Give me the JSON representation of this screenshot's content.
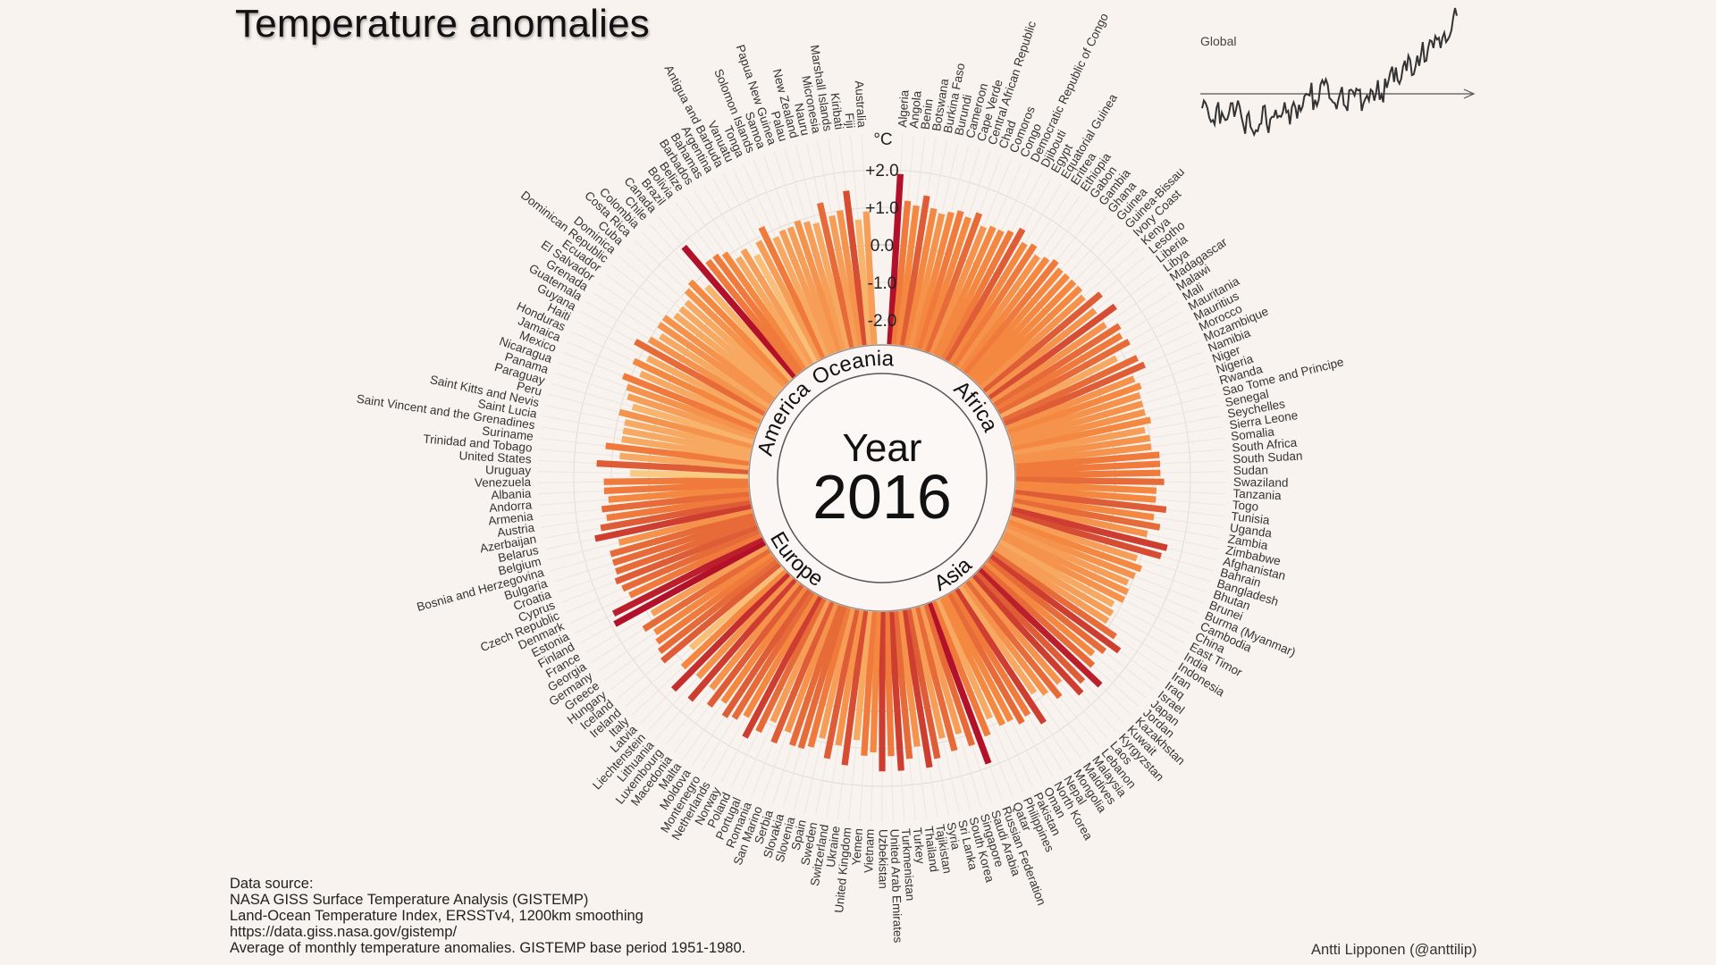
{
  "title": "Temperature anomalies",
  "inset": {
    "label": "Global",
    "series": [
      -0.17,
      -0.08,
      -0.11,
      -0.17,
      -0.28,
      -0.33,
      -0.31,
      -0.36,
      -0.17,
      -0.1,
      -0.35,
      -0.22,
      -0.27,
      -0.31,
      -0.3,
      -0.23,
      -0.11,
      -0.11,
      -0.27,
      -0.18,
      -0.08,
      -0.15,
      -0.28,
      -0.37,
      -0.47,
      -0.26,
      -0.22,
      -0.39,
      -0.43,
      -0.48,
      -0.43,
      -0.44,
      -0.36,
      -0.35,
      -0.15,
      -0.14,
      -0.36,
      -0.46,
      -0.3,
      -0.27,
      -0.27,
      -0.19,
      -0.28,
      -0.26,
      -0.27,
      -0.22,
      -0.1,
      -0.22,
      -0.2,
      -0.36,
      -0.16,
      -0.1,
      -0.16,
      -0.29,
      -0.13,
      -0.2,
      -0.15,
      -0.03,
      0.0,
      -0.01,
      -0.02,
      0.13,
      -0.19,
      -0.07,
      -0.14,
      -0.07,
      0.11,
      0.16,
      0.11,
      0.17,
      0.11,
      -0.05,
      -0.07,
      -0.1,
      -0.11,
      -0.18,
      -0.07,
      0.01,
      0.08,
      -0.13,
      -0.15,
      -0.2,
      0.04,
      0.05,
      0.03,
      -0.02,
      0.06,
      0.04,
      0.05,
      -0.2,
      -0.11,
      -0.06,
      -0.02,
      -0.08,
      0.05,
      0.03,
      -0.08,
      0.01,
      0.16,
      -0.07,
      -0.01,
      -0.1,
      0.18,
      0.07,
      0.16,
      0.26,
      0.32,
      0.14,
      0.31,
      0.16,
      0.12,
      0.18,
      0.32,
      0.39,
      0.27,
      0.45,
      0.4,
      0.22,
      0.23,
      0.32,
      0.45,
      0.33,
      0.46,
      0.61,
      0.38,
      0.39,
      0.54,
      0.63,
      0.62,
      0.54,
      0.68,
      0.64,
      0.66,
      0.54,
      0.66,
      0.72,
      0.61,
      0.64,
      0.68,
      0.75,
      0.9,
      1.01,
      0.92
    ],
    "axis_arrow": true
  },
  "center": {
    "year_word": "Year",
    "year": "2016",
    "regions": [
      "Africa",
      "Asia",
      "Europe",
      "America",
      "Oceania"
    ]
  },
  "axis": {
    "unit": "°C",
    "ticks": [
      "+2.0",
      "+1.0",
      "0.0",
      "-1.0",
      "-2.0"
    ]
  },
  "source": {
    "lines": [
      "Data source:",
      "NASA GISS Surface Temperature Analysis (GISTEMP)",
      "Land-Ocean Temperature Index, ERSSTv4, 1200km smoothing",
      "https://data.giss.nasa.gov/gistemp/",
      "Average of monthly temperature anomalies. GISTEMP base period 1951-1980."
    ]
  },
  "credit": "Antti Lipponen (@anttilip)",
  "colors": {
    "background": "#f9f3ef",
    "bar_low": "#fbd58e",
    "bar_mid": "#f4823c",
    "bar_high": "#b3102a",
    "ring": "#fbf6f3",
    "grid": "#d9d2cd"
  },
  "chart_data": {
    "type": "bar",
    "subtype": "radial",
    "title": "Temperature anomalies",
    "subtitle": "Year 2016",
    "ylabel": "°C",
    "ylim": [
      -2.0,
      2.0
    ],
    "yticks": [
      -2.0,
      -1.0,
      0.0,
      1.0,
      2.0
    ],
    "grid": true,
    "groups": [
      {
        "name": "Africa",
        "countries": [
          "Algeria",
          "Angola",
          "Benin",
          "Botswana",
          "Burkina Faso",
          "Burundi",
          "Cameroon",
          "Cape Verde",
          "Central African Republic",
          "Chad",
          "Comoros",
          "Congo",
          "Democratic Republic of Congo",
          "Djibouti",
          "Egypt",
          "Equatorial Guinea",
          "Eritrea",
          "Ethiopia",
          "Gabon",
          "Gambia",
          "Ghana",
          "Guinea",
          "Guinea-Bissau",
          "Ivory Coast",
          "Kenya",
          "Lesotho",
          "Liberia",
          "Libya",
          "Madagascar",
          "Malawi",
          "Mali",
          "Mauritania",
          "Mauritius",
          "Morocco",
          "Mozambique",
          "Namibia",
          "Niger",
          "Nigeria",
          "Rwanda",
          "Sao Tome and Principe",
          "Senegal",
          "Seychelles",
          "Sierra Leone",
          "Somalia",
          "South Africa",
          "South Sudan",
          "Sudan",
          "Swaziland",
          "Tanzania",
          "Togo",
          "Tunisia",
          "Uganda",
          "Zambia",
          "Zimbabwe"
        ],
        "values": [
          1.9,
          1.2,
          1.1,
          1.4,
          1.1,
          1.0,
          1.1,
          1.2,
          1.1,
          1.3,
          1.0,
          1.1,
          1.1,
          1.2,
          1.4,
          1.1,
          1.2,
          1.0,
          1.1,
          1.2,
          1.1,
          1.1,
          1.1,
          1.1,
          1.0,
          1.4,
          1.0,
          1.5,
          1.0,
          1.3,
          1.2,
          1.3,
          0.8,
          1.3,
          1.4,
          1.0,
          1.1,
          1.0,
          1.0,
          1.0,
          1.1,
          0.9,
          1.0,
          1.0,
          1.2,
          1.2,
          1.2,
          1.3,
          1.1,
          1.1,
          1.4,
          1.1,
          1.3,
          1.0
        ]
      },
      {
        "name": "Asia",
        "countries": [
          "Afghanistan",
          "Bahrain",
          "Bangladesh",
          "Bhutan",
          "Brunei",
          "Burma (Myanmar)",
          "Cambodia",
          "China",
          "East Timor",
          "India",
          "Indonesia",
          "Iran",
          "Iraq",
          "Israel",
          "Japan",
          "Jordan",
          "Kazakhstan",
          "Kuwait",
          "Kyrgyzstan",
          "Laos",
          "Lebanon",
          "Malaysia",
          "Maldives",
          "Mongolia",
          "Nepal",
          "North Korea",
          "Oman",
          "Pakistan",
          "Philippines",
          "Qatar",
          "Russian Federation",
          "Saudi Arabia",
          "Singapore",
          "South Korea",
          "Sri Lanka",
          "Syria",
          "Tajikistan",
          "Thailand",
          "Turkey",
          "Turkmenistan",
          "United Arab Emirates",
          "Uzbekistan",
          "Vietnam",
          "Yemen"
        ],
        "values": [
          1.6,
          1.5,
          0.9,
          1.1,
          1.0,
          0.9,
          1.0,
          1.0,
          0.8,
          0.9,
          0.9,
          1.3,
          1.6,
          1.3,
          1.1,
          1.3,
          1.8,
          1.4,
          1.6,
          1.0,
          1.3,
          1.0,
          0.8,
          1.6,
          1.2,
          1.3,
          1.1,
          1.1,
          0.8,
          1.2,
          1.9,
          1.3,
          0.9,
          1.3,
          0.9,
          1.4,
          1.6,
          1.0,
          1.3,
          1.6,
          1.2,
          1.6,
          1.1,
          1.2
        ]
      },
      {
        "name": "Europe",
        "countries": [
          "Albania",
          "Andorra",
          "Armenia",
          "Austria",
          "Azerbaijan",
          "Belarus",
          "Belgium",
          "Bosnia and Herzegovina",
          "Bulgaria",
          "Croatia",
          "Cyprus",
          "Czech Republic",
          "Denmark",
          "Estonia",
          "Finland",
          "France",
          "Georgia",
          "Germany",
          "Greece",
          "Hungary",
          "Iceland",
          "Ireland",
          "Italy",
          "Latvia",
          "Liechtenstein",
          "Lithuania",
          "Luxembourg",
          "Macedonia",
          "Malta",
          "Moldova",
          "Montenegro",
          "Netherlands",
          "Norway",
          "Poland",
          "Portugal",
          "Romania",
          "San Marino",
          "Serbia",
          "Slovakia",
          "Slovenia",
          "Spain",
          "Sweden",
          "Switzerland",
          "Ukraine",
          "United Kingdom"
        ],
        "values": [
          1.2,
          1.1,
          1.3,
          1.2,
          1.4,
          1.6,
          1.0,
          1.3,
          1.3,
          1.3,
          1.4,
          1.3,
          1.2,
          1.8,
          1.9,
          0.9,
          1.3,
          1.1,
          1.2,
          1.3,
          1.4,
          0.6,
          1.1,
          1.7,
          1.0,
          1.6,
          1.0,
          1.4,
          1.1,
          1.4,
          1.3,
          1.1,
          1.6,
          1.3,
          0.9,
          1.4,
          1.0,
          1.3,
          1.3,
          1.2,
          0.9,
          1.4,
          1.0,
          1.5,
          0.8
        ]
      },
      {
        "name": "America",
        "countries": [
          "Antigua and Barbuda",
          "Argentina",
          "Bahamas",
          "Barbados",
          "Belize",
          "Bolivia",
          "Brazil",
          "Canada",
          "Chile",
          "Colombia",
          "Costa Rica",
          "Cuba",
          "Dominica",
          "Dominican Republic",
          "Ecuador",
          "El Salvador",
          "Grenada",
          "Guatemala",
          "Guyana",
          "Haiti",
          "Honduras",
          "Jamaica",
          "Mexico",
          "Nicaragua",
          "Panama",
          "Paraguay",
          "Peru",
          "Saint Kitts and Nevis",
          "Saint Lucia",
          "Saint Vincent and the Grenadines",
          "Suriname",
          "Trinidad and Tobago",
          "United States",
          "Uruguay",
          "Venezuela"
        ],
        "values": [
          0.9,
          0.6,
          0.9,
          0.8,
          1.1,
          1.2,
          1.2,
          1.9,
          0.7,
          1.1,
          1.0,
          0.8,
          0.8,
          0.8,
          1.0,
          1.0,
          0.8,
          1.0,
          1.3,
          0.8,
          1.1,
          0.8,
          1.2,
          1.0,
          0.9,
          0.7,
          1.0,
          0.8,
          0.8,
          0.8,
          1.2,
          0.8,
          1.4,
          0.5,
          1.2
        ]
      },
      {
        "name": "Oceania",
        "countries": [
          "Australia",
          "Fiji",
          "Kiribati",
          "Marshall Islands",
          "Micronesia",
          "Nauru",
          "New Zealand",
          "Palau",
          "Papua New Guinea",
          "Samoa",
          "Solomon Islands",
          "Tonga",
          "Vanuatu"
        ],
        "values": [
          0.9,
          0.7,
          1.5,
          1.0,
          0.9,
          1.3,
          0.8,
          0.9,
          1.0,
          0.9,
          0.9,
          0.8,
          1.2
        ]
      }
    ],
    "inset": {
      "title": "Global",
      "type": "line"
    }
  }
}
